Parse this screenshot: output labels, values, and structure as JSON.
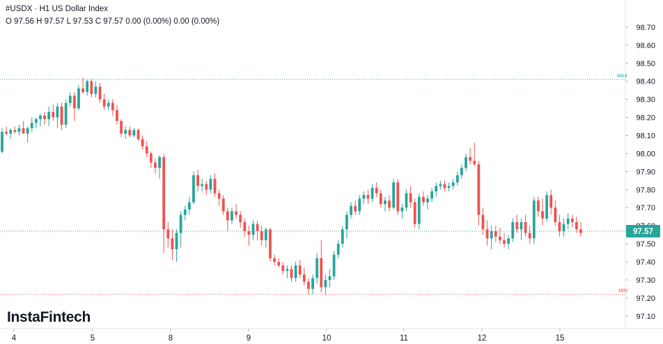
{
  "header": {
    "title": "#USDX · H1 US Dollar Index",
    "ohlc": "O 97.56 H 97.57 L 97.53 C 97.57 0.00 (0.00%) 0.00 (0.00%)"
  },
  "logo": "InstaFintech",
  "colors": {
    "up": "#26a69a",
    "down": "#ef5350",
    "max_line": "#26a69a",
    "min_line": "#ef5350",
    "price_tag": "#26a69a"
  },
  "chart_data": {
    "type": "candlestick",
    "symbol": "#USDX",
    "timeframe": "H1",
    "title": "US Dollar Index",
    "ylim": [
      97.03,
      98.85
    ],
    "y_ticks": [
      "98.70",
      "98.60",
      "98.50",
      "98.40",
      "98.30",
      "98.20",
      "98.10",
      "98.00",
      "97.90",
      "97.80",
      "97.70",
      "97.60",
      "97.50",
      "97.40",
      "97.30",
      "97.20",
      "97.10"
    ],
    "x_ticks": [
      "4",
      "5",
      "8",
      "9",
      "10",
      "11",
      "12",
      "15"
    ],
    "max_line": {
      "label": "MAX",
      "value": 98.41
    },
    "min_line": {
      "label": "MIN",
      "value": 97.22
    },
    "last_price": {
      "label": "97.57",
      "value": 97.57
    },
    "grid": true,
    "candles": [
      [
        98.01,
        98.14,
        98.0,
        98.12
      ],
      [
        98.12,
        98.15,
        98.1,
        98.11
      ],
      [
        98.11,
        98.14,
        98.08,
        98.13
      ],
      [
        98.13,
        98.15,
        98.11,
        98.12
      ],
      [
        98.12,
        98.16,
        98.1,
        98.14
      ],
      [
        98.14,
        98.18,
        98.12,
        98.11
      ],
      [
        98.11,
        98.15,
        98.06,
        98.14
      ],
      [
        98.14,
        98.2,
        98.12,
        98.17
      ],
      [
        98.17,
        98.2,
        98.14,
        98.19
      ],
      [
        98.19,
        98.22,
        98.15,
        98.21
      ],
      [
        98.21,
        98.23,
        98.16,
        98.19
      ],
      [
        98.19,
        98.26,
        98.15,
        98.23
      ],
      [
        98.23,
        98.27,
        98.18,
        98.2
      ],
      [
        98.2,
        98.28,
        98.14,
        98.26
      ],
      [
        98.26,
        98.28,
        98.13,
        98.16
      ],
      [
        98.16,
        98.3,
        98.14,
        98.28
      ],
      [
        98.28,
        98.34,
        98.26,
        98.32
      ],
      [
        98.32,
        98.34,
        98.18,
        98.25
      ],
      [
        98.25,
        98.38,
        98.24,
        98.36
      ],
      [
        98.36,
        98.42,
        98.33,
        98.34
      ],
      [
        98.34,
        98.41,
        98.32,
        98.4
      ],
      [
        98.4,
        98.41,
        98.31,
        98.33
      ],
      [
        98.33,
        98.4,
        98.31,
        98.37
      ],
      [
        98.37,
        98.39,
        98.28,
        98.3
      ],
      [
        98.3,
        98.33,
        98.24,
        98.26
      ],
      [
        98.26,
        98.3,
        98.24,
        98.28
      ],
      [
        98.28,
        98.3,
        98.21,
        98.24
      ],
      [
        98.24,
        98.27,
        98.16,
        98.18
      ],
      [
        98.18,
        98.19,
        98.09,
        98.11
      ],
      [
        98.11,
        98.15,
        98.08,
        98.13
      ],
      [
        98.13,
        98.15,
        98.09,
        98.1
      ],
      [
        98.1,
        98.14,
        98.09,
        98.13
      ],
      [
        98.13,
        98.14,
        98.07,
        98.08
      ],
      [
        98.08,
        98.1,
        98.02,
        98.04
      ],
      [
        98.04,
        98.07,
        97.98,
        98.0
      ],
      [
        98.0,
        98.01,
        97.92,
        97.95
      ],
      [
        97.95,
        97.97,
        97.89,
        97.92
      ],
      [
        97.92,
        97.99,
        97.86,
        97.98
      ],
      [
        97.98,
        98.0,
        97.45,
        97.58
      ],
      [
        97.58,
        97.62,
        97.48,
        97.53
      ],
      [
        97.53,
        97.58,
        97.41,
        97.47
      ],
      [
        97.47,
        97.58,
        97.4,
        97.56
      ],
      [
        97.56,
        97.68,
        97.48,
        97.66
      ],
      [
        97.66,
        97.71,
        97.63,
        97.69
      ],
      [
        97.69,
        97.76,
        97.66,
        97.73
      ],
      [
        97.73,
        97.9,
        97.72,
        97.88
      ],
      [
        97.88,
        97.91,
        97.79,
        97.82
      ],
      [
        97.82,
        97.86,
        97.79,
        97.83
      ],
      [
        97.83,
        97.85,
        97.77,
        97.8
      ],
      [
        97.8,
        97.88,
        97.78,
        97.86
      ],
      [
        97.86,
        97.89,
        97.76,
        97.78
      ],
      [
        97.78,
        97.8,
        97.71,
        97.75
      ],
      [
        97.75,
        97.77,
        97.66,
        97.68
      ],
      [
        97.68,
        97.7,
        97.57,
        97.63
      ],
      [
        97.63,
        97.7,
        97.61,
        97.68
      ],
      [
        97.68,
        97.72,
        97.64,
        97.66
      ],
      [
        97.66,
        97.68,
        97.59,
        97.62
      ],
      [
        97.62,
        97.64,
        97.54,
        97.57
      ],
      [
        97.57,
        97.6,
        97.49,
        97.55
      ],
      [
        97.55,
        97.63,
        97.52,
        97.61
      ],
      [
        97.61,
        97.63,
        97.52,
        97.57
      ],
      [
        97.57,
        97.6,
        97.49,
        97.52
      ],
      [
        97.52,
        97.59,
        97.48,
        97.58
      ],
      [
        97.58,
        97.59,
        97.4,
        97.42
      ],
      [
        97.42,
        97.44,
        97.38,
        97.4
      ],
      [
        97.4,
        97.42,
        97.37,
        97.38
      ],
      [
        97.38,
        97.4,
        97.33,
        97.35
      ],
      [
        97.35,
        97.38,
        97.31,
        97.36
      ],
      [
        97.36,
        97.38,
        97.29,
        97.31
      ],
      [
        97.31,
        97.4,
        97.29,
        97.38
      ],
      [
        97.38,
        97.41,
        97.31,
        97.33
      ],
      [
        97.33,
        97.37,
        97.27,
        97.29
      ],
      [
        97.29,
        97.31,
        97.22,
        97.25
      ],
      [
        97.25,
        97.33,
        97.22,
        97.31
      ],
      [
        97.31,
        97.45,
        97.28,
        97.42
      ],
      [
        97.42,
        97.52,
        97.23,
        97.26
      ],
      [
        97.26,
        97.33,
        97.22,
        97.3
      ],
      [
        97.3,
        97.36,
        97.26,
        97.32
      ],
      [
        97.32,
        97.46,
        97.3,
        97.44
      ],
      [
        97.44,
        97.52,
        97.42,
        97.5
      ],
      [
        97.5,
        97.6,
        97.48,
        97.58
      ],
      [
        97.58,
        97.68,
        97.53,
        97.66
      ],
      [
        97.66,
        97.73,
        97.64,
        97.71
      ],
      [
        97.71,
        97.74,
        97.66,
        97.68
      ],
      [
        97.68,
        97.77,
        97.66,
        97.75
      ],
      [
        97.75,
        97.79,
        97.72,
        97.77
      ],
      [
        97.77,
        97.8,
        97.72,
        97.75
      ],
      [
        97.75,
        97.83,
        97.73,
        97.81
      ],
      [
        97.81,
        97.84,
        97.76,
        97.78
      ],
      [
        97.78,
        97.8,
        97.7,
        97.72
      ],
      [
        97.72,
        97.76,
        97.68,
        97.74
      ],
      [
        97.74,
        97.77,
        97.68,
        97.7
      ],
      [
        97.7,
        97.86,
        97.69,
        97.84
      ],
      [
        97.84,
        97.86,
        97.66,
        97.68
      ],
      [
        97.68,
        97.72,
        97.64,
        97.7
      ],
      [
        97.7,
        97.8,
        97.68,
        97.78
      ],
      [
        97.78,
        97.82,
        97.7,
        97.73
      ],
      [
        97.73,
        97.75,
        97.59,
        97.61
      ],
      [
        97.61,
        97.78,
        97.58,
        97.76
      ],
      [
        97.76,
        97.79,
        97.71,
        97.73
      ],
      [
        97.73,
        97.77,
        97.69,
        97.75
      ],
      [
        97.75,
        97.81,
        97.73,
        97.79
      ],
      [
        97.79,
        97.84,
        97.76,
        97.82
      ],
      [
        97.82,
        97.85,
        97.8,
        97.83
      ],
      [
        97.83,
        97.85,
        97.79,
        97.81
      ],
      [
        97.81,
        97.84,
        97.79,
        97.82
      ],
      [
        97.82,
        97.86,
        97.8,
        97.84
      ],
      [
        97.84,
        97.9,
        97.82,
        97.88
      ],
      [
        97.88,
        97.94,
        97.86,
        97.92
      ],
      [
        97.92,
        98.0,
        97.9,
        97.98
      ],
      [
        97.98,
        98.03,
        97.94,
        97.96
      ],
      [
        97.96,
        98.06,
        97.93,
        97.94
      ],
      [
        97.94,
        97.96,
        97.6,
        97.66
      ],
      [
        97.66,
        97.7,
        97.55,
        97.58
      ],
      [
        97.58,
        97.63,
        97.49,
        97.53
      ],
      [
        97.53,
        97.6,
        97.47,
        97.57
      ],
      [
        97.57,
        97.6,
        97.51,
        97.54
      ],
      [
        97.54,
        97.59,
        97.5,
        97.52
      ],
      [
        97.52,
        97.56,
        97.48,
        97.5
      ],
      [
        97.5,
        97.55,
        97.47,
        97.53
      ],
      [
        97.53,
        97.64,
        97.51,
        97.62
      ],
      [
        97.62,
        97.66,
        97.56,
        97.58
      ],
      [
        97.58,
        97.64,
        97.52,
        97.62
      ],
      [
        97.62,
        97.66,
        97.54,
        97.56
      ],
      [
        97.56,
        97.6,
        97.5,
        97.53
      ],
      [
        97.53,
        97.76,
        97.5,
        97.74
      ],
      [
        97.74,
        97.76,
        97.65,
        97.68
      ],
      [
        97.68,
        97.75,
        97.6,
        97.64
      ],
      [
        97.64,
        97.79,
        97.62,
        97.77
      ],
      [
        97.77,
        97.8,
        97.66,
        97.7
      ],
      [
        97.7,
        97.74,
        97.6,
        97.62
      ],
      [
        97.62,
        97.66,
        97.54,
        97.57
      ],
      [
        97.57,
        97.64,
        97.54,
        97.61
      ],
      [
        97.61,
        97.67,
        97.58,
        97.64
      ],
      [
        97.64,
        97.66,
        97.59,
        97.62
      ],
      [
        97.62,
        97.65,
        97.56,
        97.58
      ],
      [
        97.58,
        97.62,
        97.54,
        97.56
      ]
    ]
  }
}
